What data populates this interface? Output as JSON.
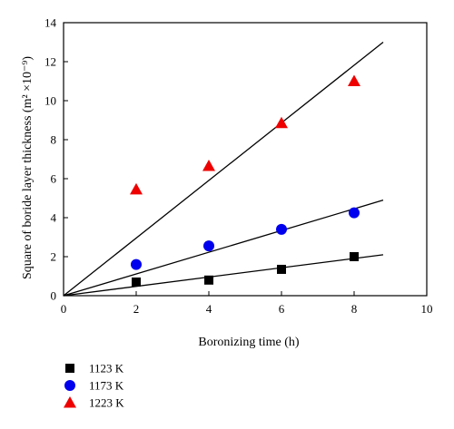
{
  "chart_data": {
    "type": "scatter",
    "xlabel": "Boronizing time (h)",
    "ylabel": "Square of boride layer thickness (m² ×10⁻⁹)",
    "xlim": [
      0,
      10
    ],
    "ylim": [
      0,
      14
    ],
    "x_ticks": [
      "0",
      "2",
      "4",
      "6",
      "8",
      "10"
    ],
    "y_ticks": [
      "0",
      "2",
      "4",
      "6",
      "8",
      "10",
      "12",
      "14"
    ],
    "grid": false,
    "legend_position": "below-left",
    "series": [
      {
        "name": "1123 K",
        "marker": "square",
        "color": "#000000",
        "x": [
          2,
          4,
          6,
          8
        ],
        "y": [
          0.7,
          0.8,
          1.35,
          2.0
        ],
        "fit_line": {
          "x": [
            0,
            8.8
          ],
          "y": [
            0,
            2.1
          ]
        }
      },
      {
        "name": "1173 K",
        "marker": "circle",
        "color": "#0000ee",
        "x": [
          2,
          4,
          6,
          8
        ],
        "y": [
          1.6,
          2.55,
          3.4,
          4.25
        ],
        "fit_line": {
          "x": [
            0,
            8.8
          ],
          "y": [
            0,
            4.9
          ]
        }
      },
      {
        "name": "1223 K",
        "marker": "triangle",
        "color": "#ee0000",
        "x": [
          2,
          4,
          6,
          8
        ],
        "y": [
          5.45,
          6.65,
          8.85,
          11.0
        ],
        "fit_line": {
          "x": [
            0,
            8.8
          ],
          "y": [
            0,
            13.0
          ]
        }
      }
    ]
  }
}
